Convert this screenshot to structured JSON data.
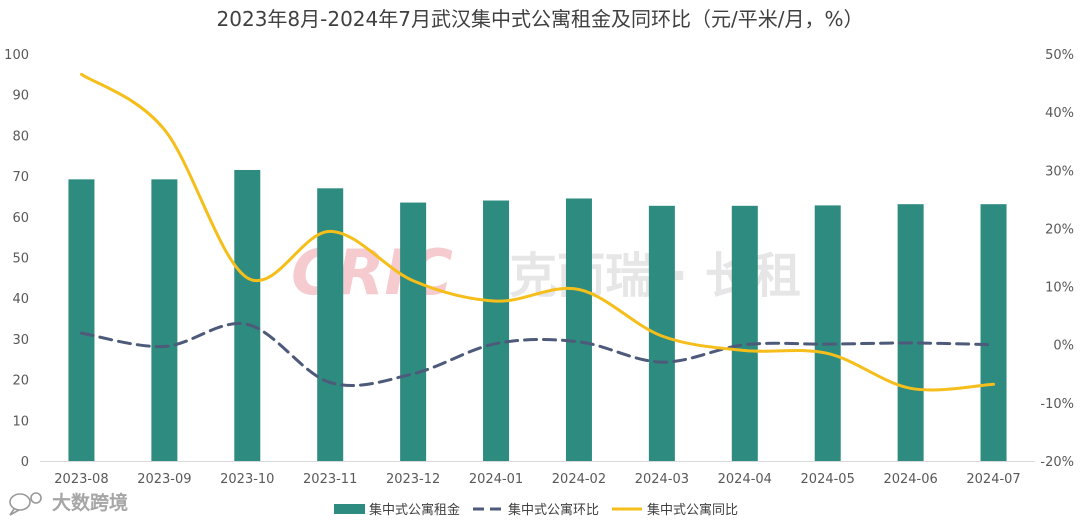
{
  "chart_data": {
    "type": "bar",
    "title": "2023年8月-2024年7月武汉集中式公寓租金及同环比（元/平米/月，%）",
    "categories": [
      "2023-08",
      "2023-09",
      "2023-10",
      "2023-11",
      "2023-12",
      "2024-01",
      "2024-02",
      "2024-03",
      "2024-04",
      "2024-05",
      "2024-06",
      "2024-07"
    ],
    "y_left": {
      "ticks": [
        "0",
        "10",
        "20",
        "30",
        "40",
        "50",
        "60",
        "70",
        "80",
        "90",
        "100"
      ],
      "ylim": [
        0,
        100
      ]
    },
    "y_right": {
      "ticks": [
        "-20%",
        "-10%",
        "0%",
        "10%",
        "20%",
        "30%",
        "40%",
        "50%"
      ],
      "ylim": [
        -20,
        50
      ]
    },
    "grid": false,
    "legend_position": "bottom",
    "series": [
      {
        "name": "集中式公寓租金",
        "type": "bar",
        "axis": "left",
        "color": "#2E8B7F",
        "values": [
          69.2,
          69.2,
          71.5,
          67.0,
          63.5,
          64.0,
          64.5,
          62.7,
          62.7,
          62.8,
          63.1,
          63.1
        ]
      },
      {
        "name": "集中式公寓环比",
        "type": "line",
        "style": "dashed",
        "axis": "right",
        "color": "#4D5A7A",
        "values": [
          2.0,
          -0.3,
          3.5,
          -6.5,
          -5.0,
          0.2,
          0.5,
          -3.0,
          0.0,
          0.1,
          0.3,
          0.0
        ]
      },
      {
        "name": "集中式公寓同比",
        "type": "line",
        "style": "solid",
        "axis": "right",
        "color": "#F5BE1A",
        "values": [
          46.5,
          37.0,
          11.5,
          19.5,
          11.0,
          7.5,
          9.5,
          1.5,
          -1.0,
          -1.5,
          -7.5,
          -6.8
        ]
      }
    ]
  },
  "watermark": {
    "logo_text": "CRIC",
    "brand_text": "克而瑞 · 长租"
  },
  "footer_logo": {
    "text": "大数跨境",
    "icon": "bubble-logo-icon"
  }
}
